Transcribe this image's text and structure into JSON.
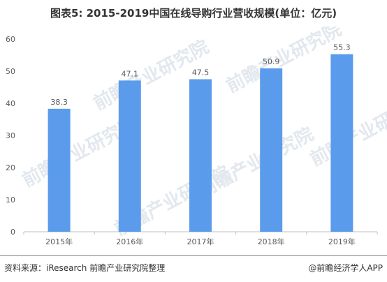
{
  "title": "图表5: 2015-2019中国在线导购行业营收规模(单位：亿元)",
  "footer": {
    "source": "资料来源：iResearch 前瞻产业研究院整理",
    "brand": "@前瞻经济学人APP"
  },
  "watermark": {
    "text": "前瞻产业研究院"
  },
  "colors": {
    "bar": "#5b9bec",
    "axis": "#bfbfbf",
    "text": "#595959",
    "watermark": "#e2e8ee"
  },
  "chart_data": {
    "type": "bar",
    "categories": [
      "2015年",
      "2016年",
      "2017年",
      "2018年",
      "2019年"
    ],
    "values": [
      38.3,
      47.1,
      47.5,
      50.9,
      55.3
    ],
    "value_labels": [
      "38.3",
      "47.1",
      "47.5",
      "50.9",
      "55.3"
    ],
    "ylim": [
      0,
      60
    ],
    "yticks": [
      0,
      10,
      20,
      30,
      40,
      50,
      60
    ],
    "grid": false,
    "legend": "none",
    "title": "图表5: 2015-2019中国在线导购行业营收规模(单位：亿元)",
    "xlabel": "",
    "ylabel": ""
  }
}
